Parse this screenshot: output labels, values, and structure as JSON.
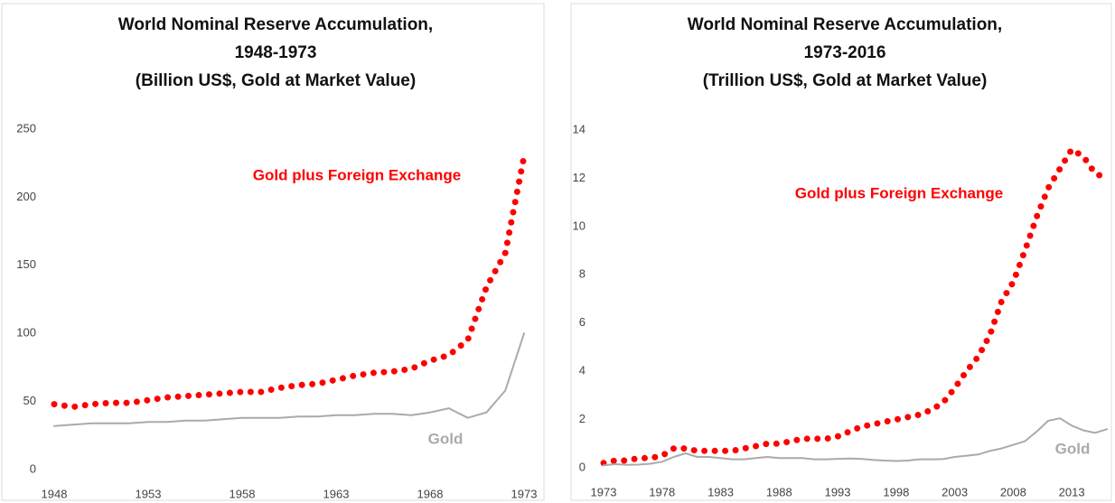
{
  "chart_data": [
    {
      "type": "line",
      "title": [
        "World Nominal Reserve Accumulation,",
        "1948-1973",
        "(Billion US$, Gold at Market Value)"
      ],
      "x": [
        1948,
        1949,
        1950,
        1951,
        1952,
        1953,
        1954,
        1955,
        1956,
        1957,
        1958,
        1959,
        1960,
        1961,
        1962,
        1963,
        1964,
        1965,
        1966,
        1967,
        1968,
        1969,
        1970,
        1971,
        1972,
        1973
      ],
      "series": [
        {
          "name": "Gold plus Foreign Exchange",
          "color": "#ff0000",
          "style": "dotted",
          "values": [
            48,
            46,
            48,
            49,
            49,
            51,
            53,
            54,
            55,
            56,
            57,
            57,
            60,
            62,
            63,
            66,
            69,
            71,
            72,
            74,
            80,
            84,
            95,
            134,
            159,
            230
          ]
        },
        {
          "name": "Gold",
          "color": "#aaaaaa",
          "style": "solid",
          "values": [
            32,
            33,
            34,
            34,
            34,
            35,
            35,
            36,
            36,
            37,
            38,
            38,
            38,
            39,
            39,
            40,
            40,
            41,
            41,
            40,
            42,
            45,
            38,
            42,
            58,
            100
          ]
        }
      ],
      "xlim": [
        1948,
        1973
      ],
      "xticks": [
        1948,
        1953,
        1958,
        1963,
        1968,
        1973
      ],
      "ylim": [
        0,
        250
      ],
      "yticks": [
        0,
        50,
        100,
        150,
        200,
        250
      ]
    },
    {
      "type": "line",
      "title": [
        "World Nominal Reserve Accumulation,",
        "1973-2016",
        "(Trillion US$, Gold at Market Value)"
      ],
      "x": [
        1973,
        1974,
        1975,
        1976,
        1977,
        1978,
        1979,
        1980,
        1981,
        1982,
        1983,
        1984,
        1985,
        1986,
        1987,
        1988,
        1989,
        1990,
        1991,
        1992,
        1993,
        1994,
        1995,
        1996,
        1997,
        1998,
        1999,
        2000,
        2001,
        2002,
        2003,
        2004,
        2005,
        2006,
        2007,
        2008,
        2009,
        2010,
        2011,
        2012,
        2013,
        2014,
        2015,
        2016
      ],
      "series": [
        {
          "name": "Gold plus Foreign Exchange",
          "color": "#ff0000",
          "style": "dotted",
          "values": [
            0.2,
            0.3,
            0.3,
            0.4,
            0.4,
            0.5,
            0.8,
            0.8,
            0.7,
            0.7,
            0.7,
            0.7,
            0.8,
            0.9,
            1.0,
            1.0,
            1.1,
            1.2,
            1.2,
            1.2,
            1.3,
            1.5,
            1.7,
            1.8,
            1.9,
            2.0,
            2.1,
            2.2,
            2.4,
            2.7,
            3.3,
            4.0,
            4.6,
            5.5,
            6.9,
            7.7,
            9.0,
            10.4,
            11.6,
            12.4,
            13.2,
            12.9,
            12.2,
            12.0
          ]
        },
        {
          "name": "Gold",
          "color": "#aaaaaa",
          "style": "solid",
          "values": [
            0.1,
            0.15,
            0.12,
            0.13,
            0.17,
            0.25,
            0.45,
            0.6,
            0.45,
            0.45,
            0.4,
            0.35,
            0.35,
            0.4,
            0.45,
            0.4,
            0.4,
            0.4,
            0.35,
            0.35,
            0.37,
            0.38,
            0.37,
            0.33,
            0.3,
            0.28,
            0.3,
            0.35,
            0.35,
            0.36,
            0.45,
            0.5,
            0.55,
            0.7,
            0.8,
            0.95,
            1.1,
            1.5,
            1.95,
            2.05,
            1.75,
            1.55,
            1.45,
            1.6
          ]
        }
      ],
      "xlim": [
        1973,
        2016
      ],
      "xticks": [
        1973,
        1978,
        1983,
        1988,
        1993,
        1998,
        2003,
        2008,
        2013
      ],
      "ylim": [
        0,
        14
      ],
      "yticks": [
        0,
        2,
        4,
        6,
        8,
        10,
        12,
        14
      ]
    }
  ]
}
